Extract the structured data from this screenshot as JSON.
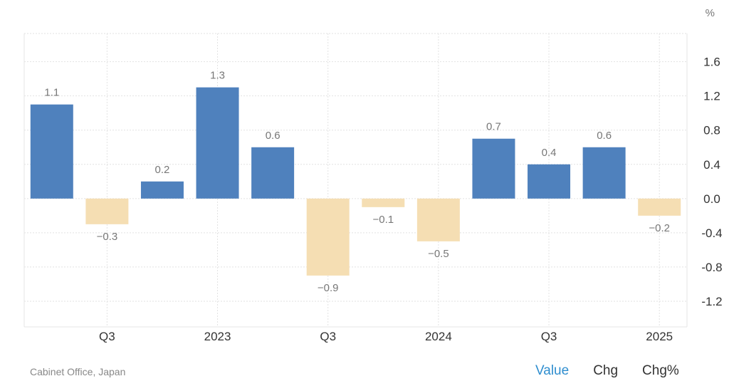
{
  "unit": "%",
  "source": "Cabinet Office, Japan",
  "tabs": [
    {
      "label": "Value",
      "active": true
    },
    {
      "label": "Chg",
      "active": false
    },
    {
      "label": "Chg%",
      "active": false
    }
  ],
  "colors": {
    "positive": "#4f81bd",
    "negative": "#f5deb3",
    "grid": "#e2e2e2",
    "label": "#777777",
    "axis": "#333333"
  },
  "chart_data": {
    "type": "bar",
    "categories": [
      "Q2 2022",
      "Q3 2022",
      "Q4 2022",
      "Q1 2023",
      "Q2 2023",
      "Q3 2023",
      "Q4 2023",
      "Q1 2024",
      "Q2 2024",
      "Q3 2024",
      "Q4 2024",
      "Q1 2025"
    ],
    "values": [
      1.1,
      -0.3,
      0.2,
      1.3,
      0.6,
      -0.9,
      -0.1,
      -0.5,
      0.7,
      0.4,
      0.6,
      -0.2
    ],
    "data_labels": [
      "1.1",
      "−0.3",
      "0.2",
      "1.3",
      "0.6",
      "−0.9",
      "−0.1",
      "−0.5",
      "0.7",
      "0.4",
      "0.6",
      "−0.2"
    ],
    "x_tick_labels": [
      "Q3",
      "2023",
      "Q3",
      "2024",
      "Q3",
      "2025"
    ],
    "y_ticks": [
      1.6,
      1.2,
      0.8,
      0.4,
      0.0,
      -0.4,
      -0.8,
      -1.2
    ],
    "y_tick_labels": [
      "1.6",
      "1.2",
      "0.8",
      "0.4",
      "0.0",
      "-0.4",
      "-0.8",
      "-1.2"
    ],
    "ylim": [
      -1.5,
      1.93
    ],
    "yaxis_position": "right",
    "grid": true,
    "title": "",
    "xlabel": "",
    "ylabel": ""
  }
}
